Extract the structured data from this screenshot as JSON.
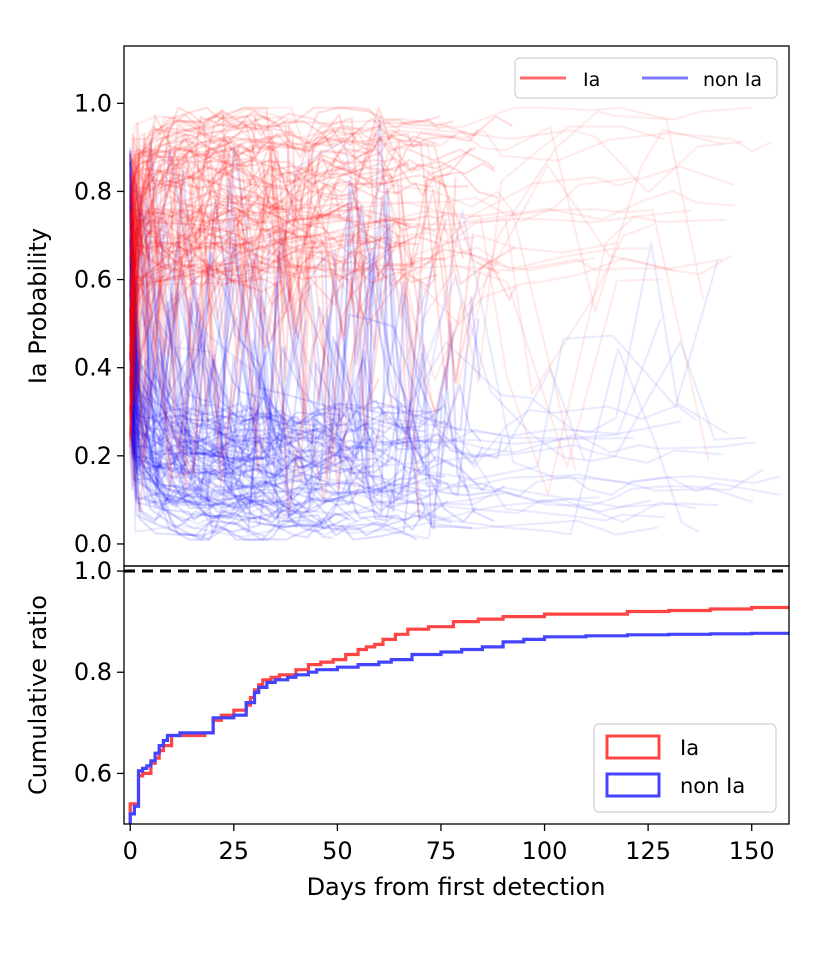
{
  "chart_data": [
    {
      "type": "line",
      "panel": "top",
      "title": "",
      "xlabel": "",
      "ylabel": "Ia Probability",
      "xlim": [
        -1.5,
        159
      ],
      "ylim": [
        -0.05,
        1.13
      ],
      "y_ticks": [
        0.0,
        0.2,
        0.4,
        0.6,
        0.8,
        1.0
      ],
      "y_tick_labels": [
        "0.0",
        "0.2",
        "0.4",
        "0.6",
        "0.8",
        "1.0"
      ],
      "legend": {
        "placement": "top-right",
        "entries": [
          {
            "label": "Ia",
            "color": "#ff6b6b"
          },
          {
            "label": "non Ia",
            "color": "#7b7bff"
          }
        ]
      },
      "series_summary": [
        {
          "name": "Ia",
          "color": "#ff0000",
          "n_curves": 110,
          "typical_range": [
            0.6,
            0.98
          ],
          "dense_until_days": 95,
          "sparse_until_days": 159
        },
        {
          "name": "non Ia",
          "color": "#0000ff",
          "n_curves": 110,
          "typical_range": [
            0.02,
            0.3
          ],
          "dense_until_days": 95,
          "sparse_until_days": 159
        }
      ]
    },
    {
      "type": "step",
      "panel": "bottom",
      "title": "",
      "xlabel": "Days from first detection",
      "ylabel": "Cumulative ratio",
      "xlim": [
        -1.5,
        159
      ],
      "ylim": [
        0.5,
        1.01
      ],
      "x_ticks": [
        0,
        25,
        50,
        75,
        100,
        125,
        150
      ],
      "x_tick_labels": [
        "0",
        "25",
        "50",
        "75",
        "100",
        "125",
        "150"
      ],
      "y_ticks": [
        0.6,
        0.8,
        1.0
      ],
      "y_tick_labels": [
        "0.6",
        "0.8",
        "1.0"
      ],
      "reference_line": {
        "y": 1.0,
        "style": "dashed",
        "color": "#000000"
      },
      "legend": {
        "placement": "bottom-right",
        "entries": [
          {
            "label": "Ia",
            "color": "#ff4444"
          },
          {
            "label": "non Ia",
            "color": "#4444ff"
          }
        ]
      },
      "series": [
        {
          "name": "Ia",
          "color": "#ff4444",
          "x": [
            0,
            1,
            2,
            3,
            5,
            6,
            7,
            8,
            10,
            12,
            15,
            18,
            20,
            22,
            25,
            28,
            29,
            30,
            31,
            32,
            34,
            36,
            40,
            43,
            46,
            49,
            52,
            55,
            57,
            59,
            61,
            64,
            67,
            72,
            78,
            84,
            90,
            100,
            110,
            120,
            130,
            140,
            150,
            159
          ],
          "y": [
            0.54,
            0.54,
            0.595,
            0.6,
            0.62,
            0.63,
            0.645,
            0.655,
            0.675,
            0.675,
            0.675,
            0.68,
            0.705,
            0.715,
            0.725,
            0.735,
            0.75,
            0.765,
            0.775,
            0.785,
            0.79,
            0.795,
            0.805,
            0.815,
            0.82,
            0.825,
            0.835,
            0.845,
            0.85,
            0.855,
            0.865,
            0.875,
            0.885,
            0.89,
            0.9,
            0.905,
            0.91,
            0.915,
            0.915,
            0.92,
            0.922,
            0.925,
            0.928,
            0.93
          ]
        },
        {
          "name": "non Ia",
          "color": "#4444ff",
          "x": [
            0,
            1,
            2,
            3,
            4,
            5,
            6,
            7,
            8,
            9,
            12,
            18,
            20,
            25,
            28,
            30,
            31,
            33,
            35,
            38,
            40,
            43,
            45,
            50,
            55,
            60,
            63,
            68,
            75,
            80,
            85,
            90,
            95,
            100,
            110,
            120,
            130,
            140,
            150,
            159
          ],
          "y": [
            0.52,
            0.535,
            0.605,
            0.61,
            0.615,
            0.625,
            0.64,
            0.655,
            0.665,
            0.675,
            0.68,
            0.68,
            0.71,
            0.715,
            0.74,
            0.76,
            0.77,
            0.78,
            0.785,
            0.79,
            0.795,
            0.8,
            0.805,
            0.81,
            0.815,
            0.82,
            0.825,
            0.835,
            0.84,
            0.845,
            0.85,
            0.86,
            0.865,
            0.87,
            0.872,
            0.874,
            0.875,
            0.876,
            0.877,
            0.878
          ]
        }
      ]
    }
  ]
}
